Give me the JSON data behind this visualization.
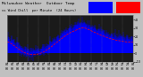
{
  "title": "Milwaukee Weather  Outdoor Temp",
  "subtitle": "vs Wind Chill  per Minute  (24 Hours)",
  "bg_color": "#c0c0c0",
  "plot_bg_color": "#1a1a1a",
  "bar_color": "#0000ff",
  "windchill_color": "#ff0000",
  "legend_temp_color": "#0000ff",
  "legend_wc_color": "#ff0000",
  "n_points": 1440,
  "y_min": -10,
  "y_max": 45,
  "title_fontsize": 3.2,
  "tick_fontsize": 2.3,
  "x_ticks_count": 25,
  "seed": 12
}
